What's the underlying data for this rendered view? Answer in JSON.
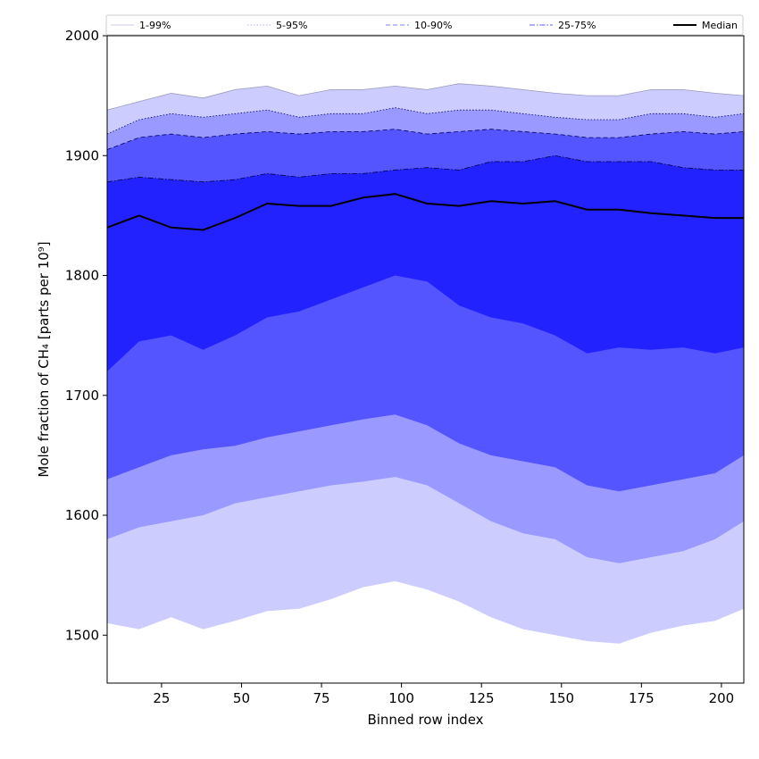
{
  "chart_data": {
    "type": "area",
    "title": "",
    "xlabel": "Binned row index",
    "ylabel": "Mole fraction of CH₄ [parts per 10⁹]",
    "xlim": [
      8,
      207
    ],
    "ylim": [
      1460,
      2000
    ],
    "xticks": [
      25,
      50,
      75,
      100,
      125,
      150,
      175,
      200
    ],
    "yticks": [
      1500,
      1600,
      1700,
      1800,
      1900,
      2000
    ],
    "grid": false,
    "legend_placement": "top",
    "x": [
      8,
      18,
      28,
      38,
      48,
      58,
      68,
      78,
      88,
      98,
      108,
      118,
      128,
      138,
      148,
      158,
      168,
      178,
      188,
      198,
      207
    ],
    "bands": [
      {
        "name": "1-99%",
        "color": "#ccccff",
        "line_style": "solid",
        "line_color": "#9999bb",
        "lower": [
          1510,
          1505,
          1515,
          1505,
          1512,
          1520,
          1522,
          1530,
          1540,
          1545,
          1538,
          1528,
          1515,
          1505,
          1500,
          1495,
          1493,
          1502,
          1508,
          1512,
          1522
        ],
        "upper": [
          1938,
          1945,
          1952,
          1948,
          1955,
          1958,
          1950,
          1955,
          1955,
          1958,
          1955,
          1960,
          1958,
          1955,
          1952,
          1950,
          1950,
          1955,
          1955,
          1952,
          1950
        ]
      },
      {
        "name": "5-95%",
        "color": "#9999ff",
        "line_style": "dotted",
        "line_color": "#000066",
        "lower": [
          1580,
          1590,
          1595,
          1600,
          1610,
          1615,
          1620,
          1625,
          1628,
          1632,
          1625,
          1610,
          1595,
          1585,
          1580,
          1565,
          1560,
          1565,
          1570,
          1580,
          1595
        ],
        "upper": [
          1918,
          1930,
          1935,
          1932,
          1935,
          1938,
          1932,
          1935,
          1935,
          1940,
          1935,
          1938,
          1938,
          1935,
          1932,
          1930,
          1930,
          1935,
          1935,
          1932,
          1935
        ]
      },
      {
        "name": "10-90%",
        "color": "#5555ff",
        "line_style": "dashed",
        "line_color": "#000055",
        "lower": [
          1630,
          1640,
          1650,
          1655,
          1658,
          1665,
          1670,
          1675,
          1680,
          1684,
          1675,
          1660,
          1650,
          1645,
          1640,
          1625,
          1620,
          1625,
          1630,
          1635,
          1650
        ],
        "upper": [
          1905,
          1915,
          1918,
          1915,
          1918,
          1920,
          1918,
          1920,
          1920,
          1922,
          1918,
          1920,
          1922,
          1920,
          1918,
          1915,
          1915,
          1918,
          1920,
          1918,
          1920
        ]
      },
      {
        "name": "25-75%",
        "color": "#2222ff",
        "line_style": "dashdot",
        "line_color": "#000044",
        "lower": [
          1720,
          1745,
          1750,
          1738,
          1750,
          1765,
          1770,
          1780,
          1790,
          1800,
          1795,
          1775,
          1765,
          1760,
          1750,
          1735,
          1740,
          1738,
          1740,
          1735,
          1740
        ],
        "upper": [
          1878,
          1882,
          1880,
          1878,
          1880,
          1885,
          1882,
          1885,
          1885,
          1888,
          1890,
          1888,
          1895,
          1895,
          1900,
          1895,
          1895,
          1895,
          1890,
          1888,
          1888
        ]
      }
    ],
    "median": {
      "name": "Median",
      "color": "#000000",
      "values": [
        1840,
        1850,
        1840,
        1838,
        1848,
        1860,
        1858,
        1858,
        1865,
        1868,
        1860,
        1858,
        1862,
        1860,
        1862,
        1855,
        1855,
        1852,
        1850,
        1848,
        1848
      ]
    }
  }
}
